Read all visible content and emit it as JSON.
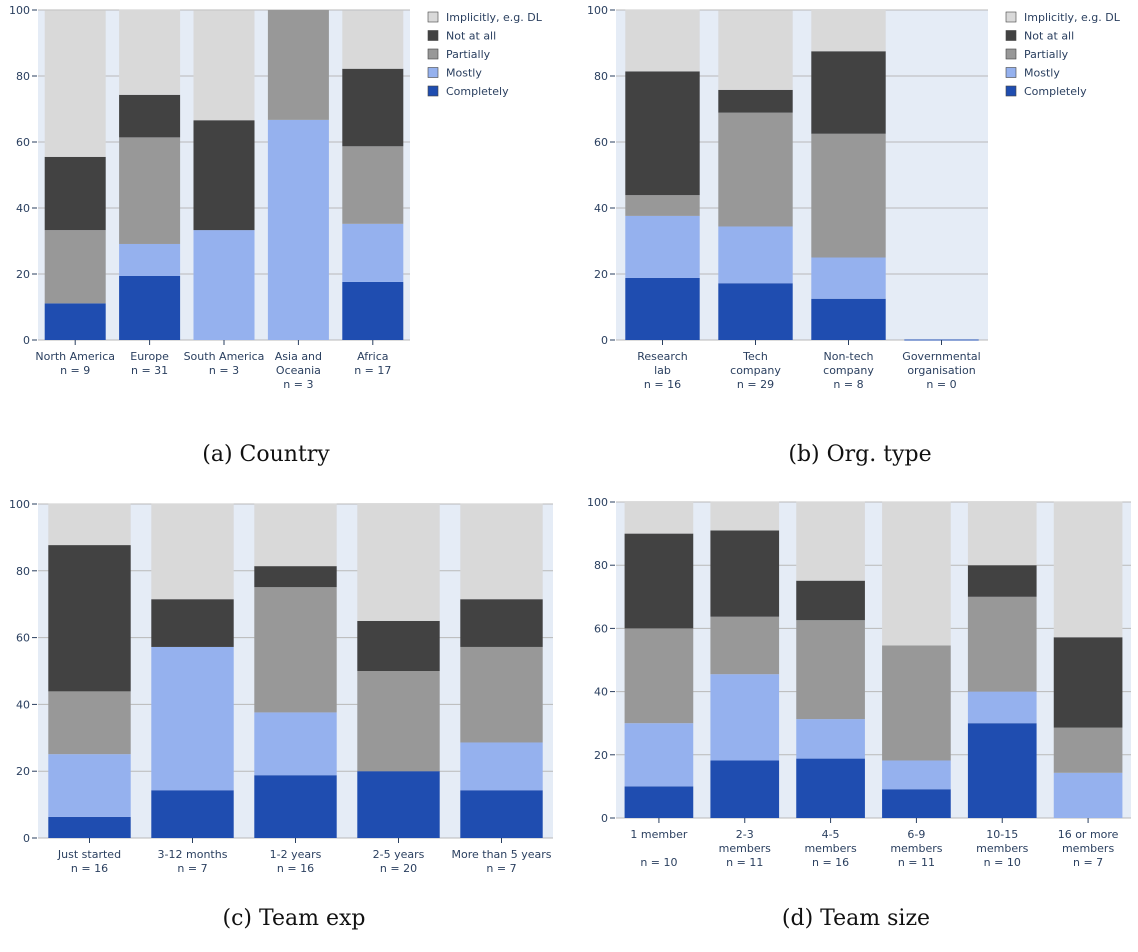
{
  "legend": {
    "entries": [
      "Implicitly, e.g. DL",
      "Not at all",
      "Partially",
      "Mostly",
      "Completely"
    ]
  },
  "colors": {
    "Implicitly, e.g. DL": "#d9d9d9",
    "Not at all": "#424242",
    "Partially": "#989898",
    "Mostly": "#95b1ee",
    "Completely": "#1f4db0",
    "plot_bg": "#e5ecf6"
  },
  "captions": {
    "a": "(a) Country",
    "b": "(b) Org. type",
    "c": "(c) Team exp",
    "d": "(d) Team size"
  },
  "chart_data": [
    {
      "type": "bar",
      "stacked": true,
      "ylim": [
        0,
        100
      ],
      "yticks": [
        0,
        20,
        40,
        60,
        80,
        100
      ],
      "grid": true,
      "legend_position": "right",
      "categories": [
        [
          "North America",
          "n = 9"
        ],
        [
          "Europe",
          "n = 31"
        ],
        [
          "South America",
          "n = 3"
        ],
        [
          "Asia and",
          "Oceania",
          "n = 3"
        ],
        [
          "Africa",
          "n = 17"
        ]
      ],
      "series": [
        {
          "name": "Completely",
          "values": [
            11.1,
            19.4,
            0,
            0,
            17.6
          ]
        },
        {
          "name": "Mostly",
          "values": [
            0,
            9.7,
            33.3,
            66.7,
            17.6
          ]
        },
        {
          "name": "Partially",
          "values": [
            22.2,
            32.3,
            0,
            33.3,
            23.5
          ]
        },
        {
          "name": "Not at all",
          "values": [
            22.2,
            12.9,
            33.3,
            0,
            23.5
          ]
        },
        {
          "name": "Implicitly, e.g. DL",
          "values": [
            44.4,
            25.8,
            33.3,
            0,
            17.6
          ]
        }
      ]
    },
    {
      "type": "bar",
      "stacked": true,
      "ylim": [
        0,
        100
      ],
      "yticks": [
        0,
        20,
        40,
        60,
        80,
        100
      ],
      "grid": true,
      "legend_position": "right",
      "categories": [
        [
          "Research",
          "lab",
          "n = 16"
        ],
        [
          "Tech",
          "company",
          "n = 29"
        ],
        [
          "Non-tech",
          "company",
          "n = 8"
        ],
        [
          "Governmental",
          "organisation",
          "n = 0"
        ]
      ],
      "series": [
        {
          "name": "Completely",
          "values": [
            18.8,
            17.2,
            12.5,
            0
          ]
        },
        {
          "name": "Mostly",
          "values": [
            18.8,
            17.2,
            12.5,
            0
          ]
        },
        {
          "name": "Partially",
          "values": [
            6.3,
            34.5,
            37.5,
            0
          ]
        },
        {
          "name": "Not at all",
          "values": [
            37.5,
            6.9,
            25.0,
            0
          ]
        },
        {
          "name": "Implicitly, e.g. DL",
          "values": [
            18.8,
            24.1,
            12.5,
            0
          ]
        }
      ]
    },
    {
      "type": "bar",
      "stacked": true,
      "ylim": [
        0,
        100
      ],
      "yticks": [
        0,
        20,
        40,
        60,
        80,
        100
      ],
      "grid": true,
      "categories": [
        [
          "Just started",
          "n = 16"
        ],
        [
          "3-12 months",
          "n = 7"
        ],
        [
          "1-2 years",
          "n = 16"
        ],
        [
          "2-5 years",
          "n = 20"
        ],
        [
          "More than 5 years",
          "n = 7"
        ]
      ],
      "series": [
        {
          "name": "Completely",
          "values": [
            6.3,
            14.3,
            18.8,
            20.0,
            14.3
          ]
        },
        {
          "name": "Mostly",
          "values": [
            18.8,
            42.9,
            18.8,
            0,
            14.3
          ]
        },
        {
          "name": "Partially",
          "values": [
            18.8,
            0,
            37.5,
            30.0,
            28.6
          ]
        },
        {
          "name": "Not at all",
          "values": [
            43.8,
            14.3,
            6.3,
            15.0,
            14.3
          ]
        },
        {
          "name": "Implicitly, e.g. DL",
          "values": [
            12.5,
            28.6,
            18.8,
            35.0,
            28.6
          ]
        }
      ]
    },
    {
      "type": "bar",
      "stacked": true,
      "ylim": [
        0,
        100
      ],
      "yticks": [
        0,
        20,
        40,
        60,
        80,
        100
      ],
      "grid": true,
      "categories": [
        [
          "1 member",
          "",
          "n = 10"
        ],
        [
          "2-3",
          "members",
          "n = 11"
        ],
        [
          "4-5",
          "members",
          "n = 16"
        ],
        [
          "6-9",
          "members",
          "n = 11"
        ],
        [
          "10-15",
          "members",
          "n = 10"
        ],
        [
          "16 or more",
          "members",
          "n = 7"
        ]
      ],
      "series": [
        {
          "name": "Completely",
          "values": [
            10.0,
            18.2,
            18.8,
            9.1,
            30.0,
            0
          ]
        },
        {
          "name": "Mostly",
          "values": [
            20.0,
            27.3,
            12.5,
            9.1,
            10.0,
            14.3
          ]
        },
        {
          "name": "Partially",
          "values": [
            30.0,
            18.2,
            31.3,
            36.4,
            30.0,
            14.3
          ]
        },
        {
          "name": "Not at all",
          "values": [
            30.0,
            27.3,
            12.5,
            0,
            10.0,
            28.6
          ]
        },
        {
          "name": "Implicitly, e.g. DL",
          "values": [
            10.0,
            9.1,
            25.0,
            45.5,
            20.0,
            42.9
          ]
        }
      ]
    }
  ]
}
